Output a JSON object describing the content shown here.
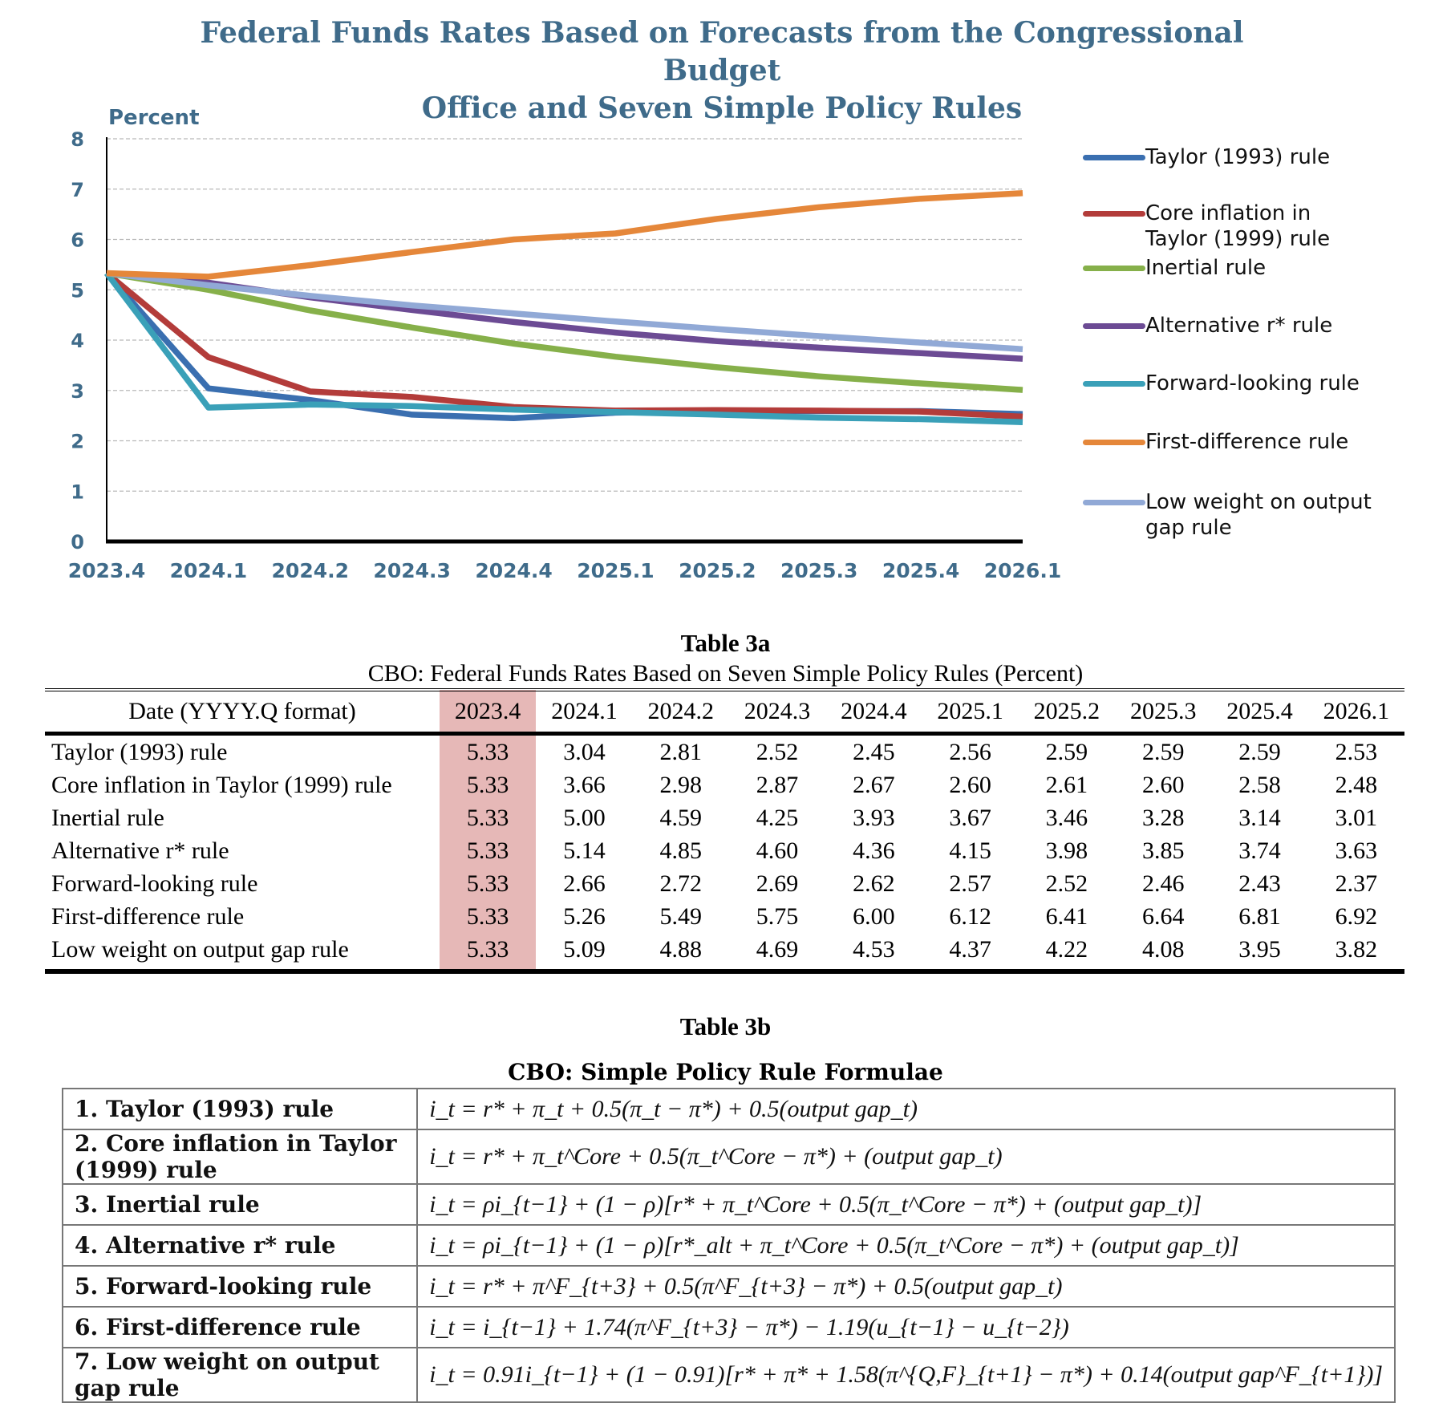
{
  "chart_data": {
    "type": "line",
    "title": [
      "Federal Funds Rates Based on Forecasts from the Congressional Budget",
      "Office and Seven Simple Policy Rules"
    ],
    "ylabel": "Percent",
    "xlabel": "",
    "ylim": [
      0,
      8
    ],
    "yticks": [
      "0",
      "1",
      "2",
      "3",
      "4",
      "5",
      "6",
      "7",
      "8"
    ],
    "categories": [
      "2023.4",
      "2024.1",
      "2024.2",
      "2024.3",
      "2024.4",
      "2025.1",
      "2025.2",
      "2025.3",
      "2025.4",
      "2026.1"
    ],
    "grid": true,
    "legend_position": "right",
    "series": [
      {
        "name": "Taylor (1993) rule",
        "color": "#3a6fb0",
        "values": [
          5.33,
          3.04,
          2.81,
          2.52,
          2.45,
          2.56,
          2.59,
          2.59,
          2.59,
          2.53
        ]
      },
      {
        "name": "Core inflation in Taylor (1999) rule",
        "color": "#b33c3a",
        "values": [
          5.33,
          3.66,
          2.98,
          2.87,
          2.67,
          2.6,
          2.61,
          2.6,
          2.58,
          2.48
        ]
      },
      {
        "name": "Inertial rule",
        "color": "#86b04a",
        "values": [
          5.33,
          5.0,
          4.59,
          4.25,
          3.93,
          3.67,
          3.46,
          3.28,
          3.14,
          3.01
        ]
      },
      {
        "name": "Alternative r* rule",
        "color": "#6c4b94",
        "values": [
          5.33,
          5.14,
          4.85,
          4.6,
          4.36,
          4.15,
          3.98,
          3.85,
          3.74,
          3.63
        ]
      },
      {
        "name": "Forward-looking rule",
        "color": "#3aa0b8",
        "values": [
          5.33,
          2.66,
          2.72,
          2.69,
          2.62,
          2.57,
          2.52,
          2.46,
          2.43,
          2.37
        ]
      },
      {
        "name": "First-difference rule",
        "color": "#e5873a",
        "values": [
          5.33,
          5.26,
          5.49,
          5.75,
          6.0,
          6.12,
          6.41,
          6.64,
          6.81,
          6.92
        ]
      },
      {
        "name": "Low weight on output gap rule",
        "color": "#91a9d6",
        "values": [
          5.33,
          5.09,
          4.88,
          4.69,
          4.53,
          4.37,
          4.22,
          4.08,
          3.95,
          3.82
        ]
      }
    ]
  },
  "legend_labels": [
    [
      "Taylor (1993) rule"
    ],
    [
      "Core inflation in",
      "Taylor (1999) rule"
    ],
    [
      "Inertial rule"
    ],
    [
      "Alternative r* rule"
    ],
    [
      "Forward-looking rule"
    ],
    [
      "First-difference rule"
    ],
    [
      "Low weight on output",
      "gap rule"
    ]
  ],
  "table3a": {
    "title": "Table 3a",
    "subtitle": "CBO: Federal Funds Rates Based on Seven Simple Policy Rules (Percent)",
    "header_label": "Date (YYYY.Q format)",
    "dates": [
      "2023.4",
      "2024.1",
      "2024.2",
      "2024.3",
      "2024.4",
      "2025.1",
      "2025.2",
      "2025.3",
      "2025.4",
      "2026.1"
    ],
    "rows": [
      {
        "name": "Taylor (1993) rule",
        "values": [
          "5.33",
          "3.04",
          "2.81",
          "2.52",
          "2.45",
          "2.56",
          "2.59",
          "2.59",
          "2.59",
          "2.53"
        ]
      },
      {
        "name": "Core inflation in Taylor (1999) rule",
        "values": [
          "5.33",
          "3.66",
          "2.98",
          "2.87",
          "2.67",
          "2.60",
          "2.61",
          "2.60",
          "2.58",
          "2.48"
        ]
      },
      {
        "name": "Inertial rule",
        "values": [
          "5.33",
          "5.00",
          "4.59",
          "4.25",
          "3.93",
          "3.67",
          "3.46",
          "3.28",
          "3.14",
          "3.01"
        ]
      },
      {
        "name": "Alternative r* rule",
        "values": [
          "5.33",
          "5.14",
          "4.85",
          "4.60",
          "4.36",
          "4.15",
          "3.98",
          "3.85",
          "3.74",
          "3.63"
        ]
      },
      {
        "name": "Forward-looking rule",
        "values": [
          "5.33",
          "2.66",
          "2.72",
          "2.69",
          "2.62",
          "2.57",
          "2.52",
          "2.46",
          "2.43",
          "2.37"
        ]
      },
      {
        "name": "First-difference rule",
        "values": [
          "5.33",
          "5.26",
          "5.49",
          "5.75",
          "6.00",
          "6.12",
          "6.41",
          "6.64",
          "6.81",
          "6.92"
        ]
      },
      {
        "name": "Low weight on output gap rule",
        "values": [
          "5.33",
          "5.09",
          "4.88",
          "4.69",
          "4.53",
          "4.37",
          "4.22",
          "4.08",
          "3.95",
          "3.82"
        ]
      }
    ]
  },
  "table3b": {
    "title": "Table 3b",
    "subtitle": "CBO: Simple Policy Rule Formulae",
    "rows": [
      {
        "name": "1. Taylor (1993) rule",
        "formula": "i_t = r* + π_t + 0.5(π_t − π*) + 0.5(output gap_t)"
      },
      {
        "name": "2. Core inflation in Taylor (1999) rule",
        "formula": "i_t = r* + π_t^Core + 0.5(π_t^Core − π*) + (output gap_t)"
      },
      {
        "name": "3. Inertial rule",
        "formula": "i_t = ρi_{t−1} + (1 − ρ)[r* + π_t^Core + 0.5(π_t^Core − π*) + (output gap_t)]"
      },
      {
        "name": "4. Alternative r* rule",
        "formula": "i_t = ρi_{t−1} + (1 − ρ)[r*_alt + π_t^Core + 0.5(π_t^Core − π*) + (output gap_t)]"
      },
      {
        "name": "5. Forward-looking rule",
        "formula": "i_t = r* + π^F_{t+3} + 0.5(π^F_{t+3} − π*) + 0.5(output gap_t)"
      },
      {
        "name": "6. First-difference rule",
        "formula": "i_t = i_{t−1} + 1.74(π^F_{t+3} − π*) − 1.19(u_{t−1} − u_{t−2})"
      },
      {
        "name": "7. Low weight on output gap rule",
        "formula": "i_t = 0.91i_{t−1} + (1 − 0.91)[r* + π* + 1.58(π^{Q,F}_{t+1} − π*) + 0.14(output gap^F_{t+1})]"
      }
    ]
  }
}
